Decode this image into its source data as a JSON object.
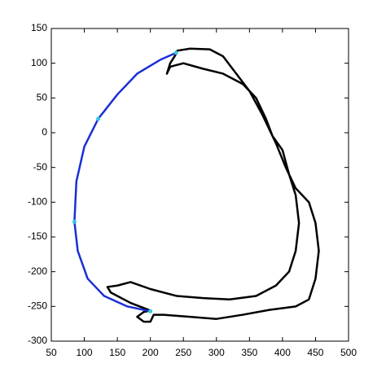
{
  "chart_data": {
    "type": "line",
    "xlim": [
      50,
      500
    ],
    "ylim": [
      -300,
      150
    ],
    "xticks": [
      50,
      100,
      150,
      200,
      250,
      300,
      350,
      400,
      450,
      500
    ],
    "yticks": [
      -300,
      -250,
      -200,
      -150,
      -100,
      -50,
      0,
      50,
      100,
      150
    ],
    "series": [
      {
        "type": "line",
        "color": "#000000",
        "x": [
          240,
          260,
          290,
          310,
          330,
          350,
          370,
          390,
          405,
          420,
          440,
          450,
          455,
          450,
          440,
          420,
          380,
          340,
          300,
          260,
          220,
          205,
          200,
          190,
          180,
          190,
          200,
          170,
          140,
          135,
          150,
          170,
          200,
          240,
          280,
          320,
          360,
          390,
          410,
          420,
          425,
          420,
          410,
          400,
          385,
          375,
          360,
          340,
          310,
          280,
          250,
          230,
          225,
          230,
          238,
          240
        ],
        "y": [
          118,
          121,
          120,
          110,
          85,
          60,
          25,
          -15,
          -50,
          -80,
          -100,
          -130,
          -170,
          -210,
          -240,
          -250,
          -255,
          -262,
          -268,
          -265,
          -262,
          -262,
          -272,
          -272,
          -265,
          -258,
          -256,
          -245,
          -230,
          -222,
          -220,
          -215,
          -225,
          -235,
          -238,
          -240,
          -235,
          -220,
          -200,
          -170,
          -130,
          -90,
          -60,
          -25,
          -5,
          20,
          50,
          70,
          85,
          92,
          100,
          95,
          85,
          100,
          112,
          118
        ]
      },
      {
        "type": "line",
        "color": "#1a2fd6",
        "x": [
          239,
          215,
          180,
          150,
          121,
          100,
          88,
          85,
          90,
          105,
          130,
          165,
          200
        ],
        "y": [
          115,
          105,
          85,
          55,
          20,
          -20,
          -70,
          -128,
          -170,
          -210,
          -235,
          -250,
          -257
        ]
      },
      {
        "type": "scatter",
        "color": "#33c8e0",
        "x": [
          239,
          121,
          85,
          200
        ],
        "y": [
          115,
          20,
          -128,
          -257
        ]
      }
    ]
  }
}
